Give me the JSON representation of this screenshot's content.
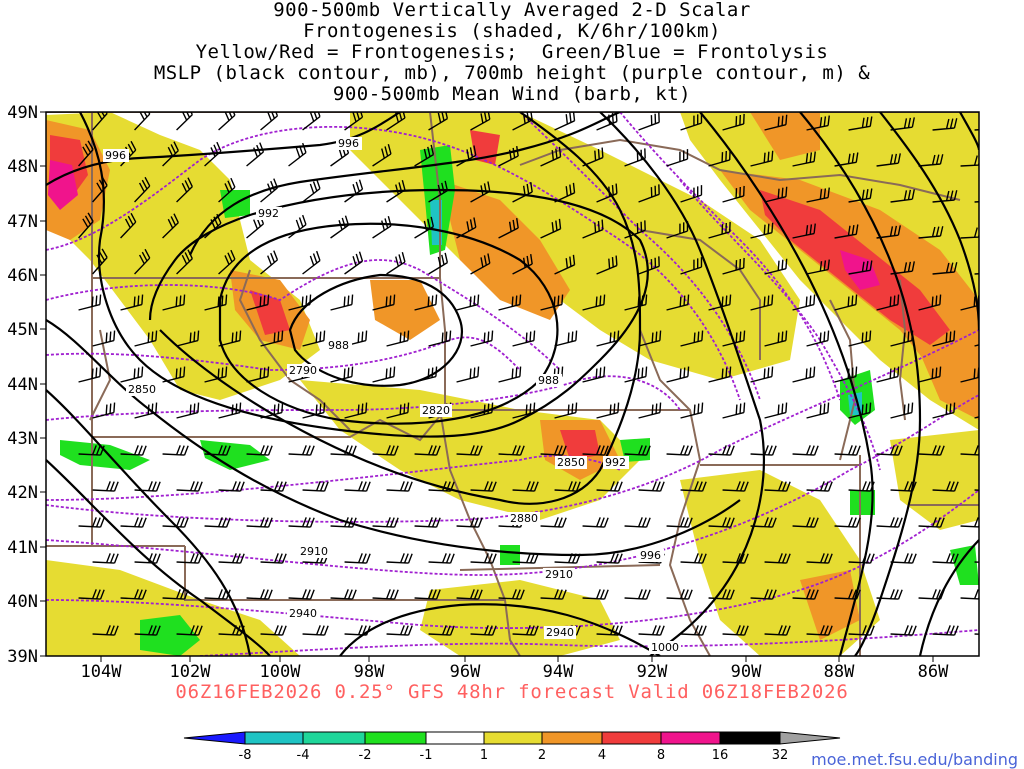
{
  "title_lines": [
    "900-500mb Vertically Averaged 2-D Scalar",
    "Frontogenesis (shaded, K/6hr/100km)",
    "Yellow/Red = Frontogenesis;  Green/Blue = Frontolysis",
    "MSLP (black contour, mb), 700mb height (purple contour, m) &",
    "900-500mb Mean Wind (barb, kt)"
  ],
  "valid_line": "06Z16FEB2026 0.25° GFS 48hr forecast Valid 06Z18FEB2026",
  "credit": "moe.met.fsu.edu/banding",
  "map": {
    "lat_labels": [
      "39N",
      "40N",
      "41N",
      "42N",
      "43N",
      "44N",
      "45N",
      "46N",
      "47N",
      "48N",
      "49N"
    ],
    "lon_labels": [
      "104W",
      "102W",
      "100W",
      "98W",
      "96W",
      "94W",
      "92W",
      "90W",
      "88W",
      "86W"
    ],
    "mslp_labels": [
      "996",
      "996",
      "992",
      "988",
      "988",
      "992",
      "996",
      "1000"
    ],
    "height_labels": [
      "2850",
      "2790",
      "2820",
      "2850",
      "2880",
      "2910",
      "2910",
      "2940",
      "2940"
    ]
  },
  "colorbar": {
    "tick_labels": [
      "-8",
      "-4",
      "-2",
      "-1",
      "1",
      "2",
      "4",
      "8",
      "16",
      "32"
    ],
    "colors": [
      "#1a1aff",
      "#1fc4c4",
      "#1fd69a",
      "#1fe01f",
      "#ffffff",
      "#e6dc32",
      "#f09628",
      "#f03c3c",
      "#f0148c",
      "#000000",
      "#a0a0a0"
    ]
  },
  "colors": {
    "state_lines": "#8a6a58",
    "mslp_contour": "#000000",
    "height_contour": "#a020d0",
    "valid_text": "#ff6060",
    "credit_text": "#4a64d8"
  }
}
